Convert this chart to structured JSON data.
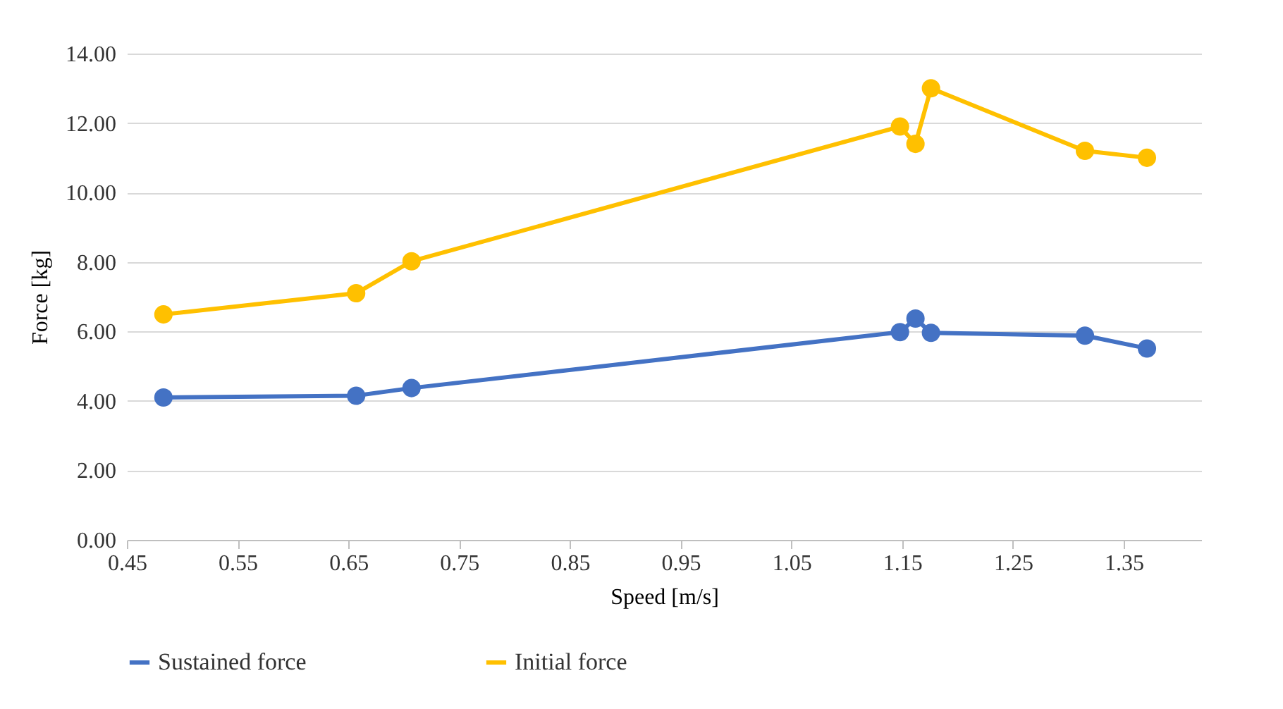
{
  "chart_data": {
    "type": "line",
    "xlabel": "Speed [m/s]",
    "ylabel": "Force [kg]",
    "x": [
      0.483,
      0.657,
      0.707,
      1.148,
      1.162,
      1.176,
      1.315,
      1.371
    ],
    "series": [
      {
        "name": "Sustained force",
        "color": "#4472c4",
        "values": [
          4.1,
          4.15,
          4.37,
          5.98,
          6.37,
          5.96,
          5.88,
          5.51
        ]
      },
      {
        "name": "Initial force",
        "color": "#ffc000",
        "values": [
          6.49,
          7.1,
          8.02,
          11.9,
          11.4,
          13.0,
          11.2,
          11.0
        ]
      }
    ],
    "xlim": [
      0.45,
      1.42
    ],
    "xticks": [
      {
        "value": 0.45,
        "label": "0.45"
      },
      {
        "value": 0.55,
        "label": "0.55"
      },
      {
        "value": 0.65,
        "label": "0.65"
      },
      {
        "value": 0.75,
        "label": "0.75"
      },
      {
        "value": 0.85,
        "label": "0.85"
      },
      {
        "value": 0.95,
        "label": "0.95"
      },
      {
        "value": 1.05,
        "label": "1.05"
      },
      {
        "value": 1.15,
        "label": "1.15"
      },
      {
        "value": 1.25,
        "label": "1.25"
      },
      {
        "value": 1.35,
        "label": "1.35"
      }
    ],
    "ylim": [
      0,
      14
    ],
    "yticks": [
      {
        "value": 0,
        "label": "0.00"
      },
      {
        "value": 2,
        "label": "2.00"
      },
      {
        "value": 4,
        "label": "4.00"
      },
      {
        "value": 6,
        "label": "6.00"
      },
      {
        "value": 8,
        "label": "8.00"
      },
      {
        "value": 10,
        "label": "10.00"
      },
      {
        "value": 12,
        "label": "12.00"
      },
      {
        "value": 14,
        "label": "14.00"
      }
    ],
    "grid": "y",
    "legend": "bottom",
    "marker": "circle",
    "line_style": "solid"
  }
}
